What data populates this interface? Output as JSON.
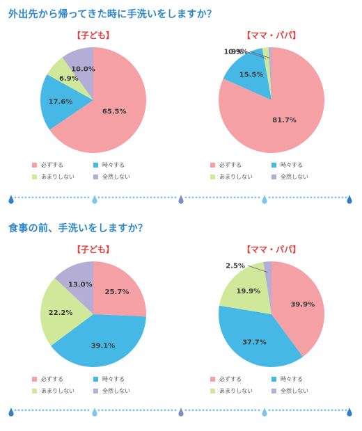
{
  "legend_labels": [
    "必ずする",
    "時々する",
    "あまりしない",
    "全然しない"
  ],
  "colors": [
    "#f4a0a4",
    "#46b8e6",
    "#cfe89a",
    "#b4aed6"
  ],
  "chart_data": [
    {
      "type": "pie",
      "question": "外出先から帰ってきた時に手洗いをしますか？",
      "title": "【子ども】",
      "slices": [
        {
          "label": "必ずする",
          "value": 65.5,
          "value_label": "65.5%"
        },
        {
          "label": "時々する",
          "value": 17.6,
          "value_label": "17.6%"
        },
        {
          "label": "あまりしない",
          "value": 6.9,
          "value_label": "6.9%"
        },
        {
          "label": "全然しない",
          "value": 10.0,
          "value_label": "10.0%"
        }
      ]
    },
    {
      "type": "pie",
      "title": "【ママ・パパ】",
      "slices": [
        {
          "label": "必ずする",
          "value": 81.7,
          "value_label": "81.7%"
        },
        {
          "label": "時々する",
          "value": 15.5,
          "value_label": "15.5%"
        },
        {
          "label": "あまりしない",
          "value": 1.9,
          "value_label": "1.9%"
        },
        {
          "label": "全然しない",
          "value": 0.9,
          "value_label": "0.9%"
        }
      ]
    },
    {
      "type": "pie",
      "question": "食事の前、手洗いをしますか？",
      "title": "【子ども】",
      "slices": [
        {
          "label": "必ずする",
          "value": 25.7,
          "value_label": "25.7%"
        },
        {
          "label": "時々する",
          "value": 39.1,
          "value_label": "39.1%"
        },
        {
          "label": "あまりしない",
          "value": 22.2,
          "value_label": "22.2%"
        },
        {
          "label": "全然しない",
          "value": 13.0,
          "value_label": "13.0%"
        }
      ]
    },
    {
      "type": "pie",
      "title": "【ママ・パパ】",
      "slices": [
        {
          "label": "必ずする",
          "value": 39.9,
          "value_label": "39.9%"
        },
        {
          "label": "時々する",
          "value": 37.7,
          "value_label": "37.7%"
        },
        {
          "label": "あまりしない",
          "value": 19.9,
          "value_label": "19.9%"
        },
        {
          "label": "全然しない",
          "value": 2.5,
          "value_label": "2.5%"
        }
      ]
    }
  ]
}
